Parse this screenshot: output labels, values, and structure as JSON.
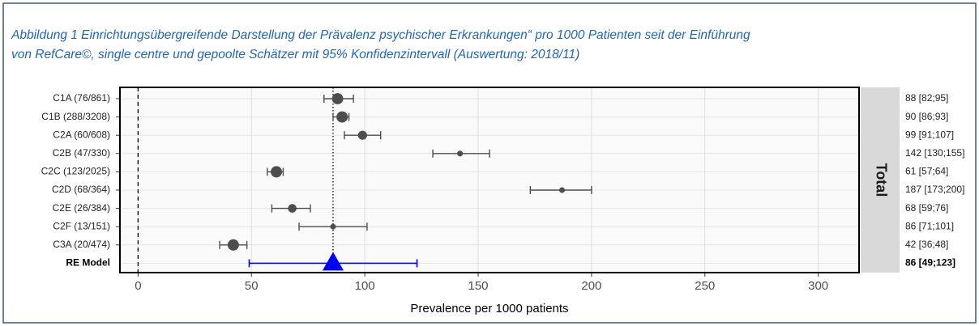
{
  "chart_data": {
    "type": "forest",
    "caption": [
      "Abbildung 1 Einrichtungsübergreifende Darstellung der Prävalenz psychischer Erkrankungen“ pro 1000 Patienten seit der Einführung",
      "von RefCare©, single centre und gepoolte Schätzer mit 95% Konfidenzintervall (Auswertung: 2018/11)"
    ],
    "xlabel": "Prevalence per 1000 patients",
    "strip": "Total",
    "categories": [
      "C1A (76/861)",
      "C1B (288/3208)",
      "C2A (60/608)",
      "C2B (47/330)",
      "C2C (123/2025)",
      "C2D (68/364)",
      "C2E (26/384)",
      "C2F (13/151)",
      "C3A (20/474)"
    ],
    "values": [
      88,
      90,
      99,
      142,
      61,
      187,
      68,
      86,
      42
    ],
    "lower": [
      82,
      86,
      91,
      130,
      57,
      173,
      59,
      71,
      36
    ],
    "upper": [
      95,
      93,
      107,
      155,
      64,
      200,
      76,
      101,
      48
    ],
    "value_labels": [
      "88 [82;95]",
      "90 [86;93]",
      "99 [91;107]",
      "142 [130;155]",
      "61 [57;64]",
      "187 [173;200]",
      "68 [59;76]",
      "86 [71;101]",
      "42 [36;48]"
    ],
    "color": "#4d4d4d",
    "summary": {
      "name": "RE Model",
      "value": 86,
      "lower": 49,
      "upper": 123,
      "value_label": "86 [49;123]",
      "color": "#0000ff"
    },
    "refline": 0,
    "xlim": [
      -8,
      318
    ],
    "xticks": [
      0,
      50,
      100,
      150,
      200,
      250,
      300
    ],
    "grid": true
  }
}
